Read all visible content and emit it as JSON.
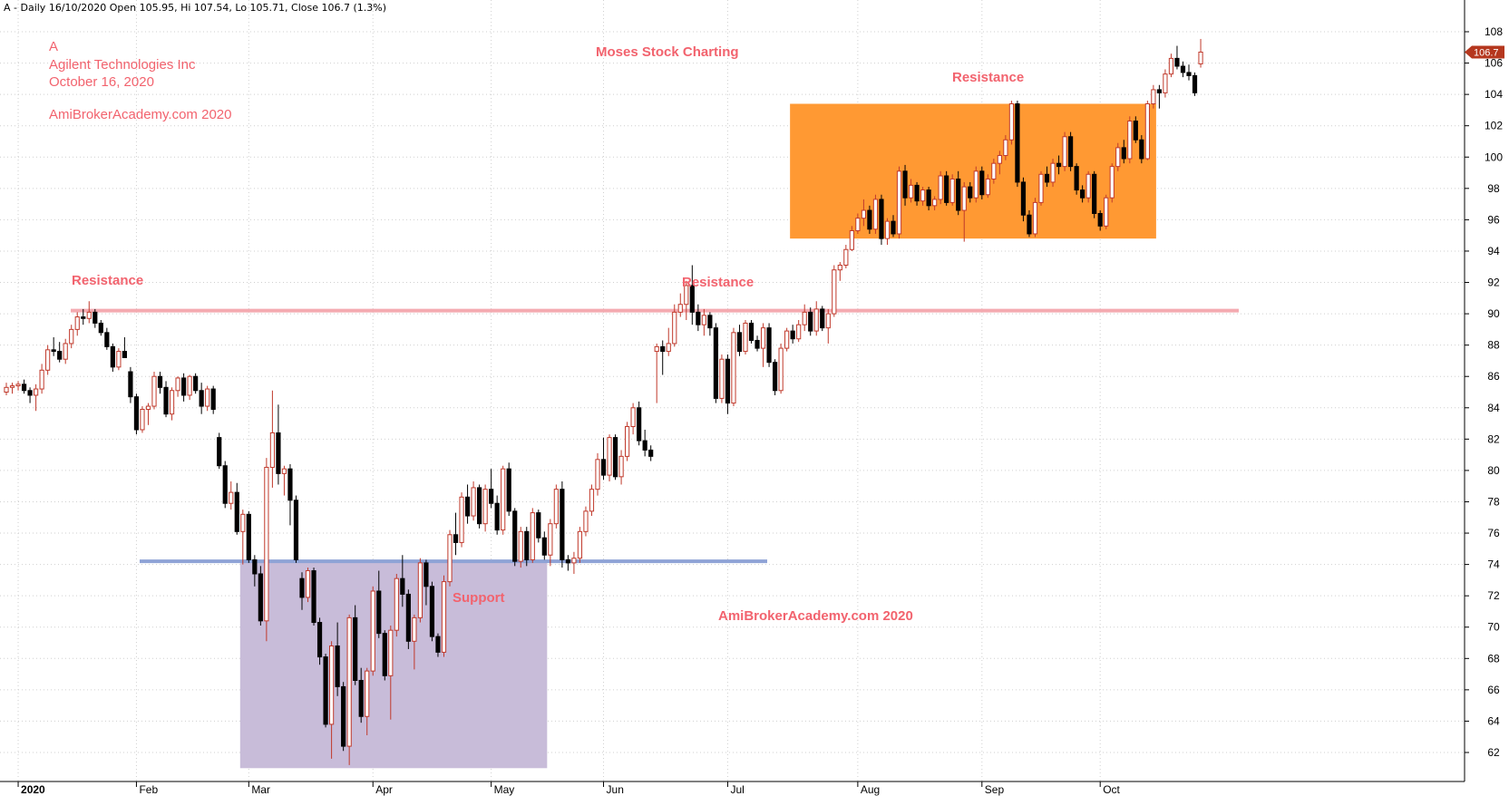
{
  "header": {
    "text": "A - Daily 16/10/2020 Open 105.95, Hi 107.54, Lo 105.71, Close 106.7 (1.3%)"
  },
  "annotations": {
    "ticker": "A",
    "company": "Agilent Technologies Inc",
    "date": "October 16, 2020",
    "site_top": "AmiBrokerAcademy.com  2020",
    "credit": "Moses Stock Charting",
    "resistance_left": "Resistance",
    "resistance_mid": "Resistance",
    "resistance_box": "Resistance",
    "support": "Support",
    "site_bottom": "AmiBrokerAcademy.com  2020"
  },
  "colors": {
    "up_candle": "#c0392b",
    "down_candle": "#000000",
    "resistance_line": "#f4aab0",
    "support_line": "#8fa3d6",
    "support_box": "#c8bcd9",
    "resistance_box": "#ff9933",
    "annotation_text": "#f2636e",
    "last_price_badge": "#b5371e",
    "grid": "#cfcfcf"
  },
  "chart_data": {
    "type": "candlestick",
    "symbol": "A",
    "period": "Daily",
    "ylim": [
      61,
      109
    ],
    "y_ticks": [
      62,
      64,
      66,
      68,
      70,
      72,
      74,
      76,
      78,
      80,
      82,
      84,
      86,
      88,
      90,
      92,
      94,
      96,
      98,
      100,
      102,
      104,
      106,
      108
    ],
    "x_month_labels": [
      {
        "label": "2020",
        "index": 2,
        "bold": true
      },
      {
        "label": "Feb",
        "index": 22
      },
      {
        "label": "Mar",
        "index": 41
      },
      {
        "label": "Apr",
        "index": 62
      },
      {
        "label": "May",
        "index": 82
      },
      {
        "label": "Jun",
        "index": 101
      },
      {
        "label": "Jul",
        "index": 122
      },
      {
        "label": "Aug",
        "index": 144
      },
      {
        "label": "Sep",
        "index": 165
      },
      {
        "label": "Oct",
        "index": 185
      }
    ],
    "last_close_label": "106.7",
    "last_close": 106.7,
    "resistance_level": 90.2,
    "support_level": 74.2,
    "support_zone": {
      "from_index": 40,
      "to_index": 91,
      "low": 61,
      "high": 74.2
    },
    "resistance_zone": {
      "from_index": 133,
      "to_index": 194,
      "low": 94.8,
      "high": 103.4
    },
    "ohlc": [
      [
        85.0,
        85.6,
        84.8,
        85.3
      ],
      [
        85.3,
        85.6,
        84.9,
        85.4
      ],
      [
        85.4,
        85.7,
        85.1,
        85.5
      ],
      [
        85.5,
        85.8,
        84.9,
        85.1
      ],
      [
        85.1,
        85.3,
        84.3,
        84.8
      ],
      [
        84.8,
        85.5,
        83.8,
        85.2
      ],
      [
        85.2,
        86.8,
        84.9,
        86.4
      ],
      [
        86.4,
        88.0,
        86.1,
        87.7
      ],
      [
        87.7,
        88.5,
        87.3,
        87.6
      ],
      [
        87.6,
        88.2,
        86.9,
        87.1
      ],
      [
        87.1,
        88.4,
        86.8,
        88.1
      ],
      [
        88.1,
        89.3,
        87.8,
        89.0
      ],
      [
        89.0,
        90.1,
        88.6,
        89.8
      ],
      [
        89.8,
        90.3,
        89.3,
        89.7
      ],
      [
        89.7,
        90.8,
        89.4,
        90.1
      ],
      [
        90.1,
        90.3,
        89.1,
        89.4
      ],
      [
        89.4,
        89.6,
        88.6,
        88.8
      ],
      [
        88.8,
        89.1,
        87.7,
        87.9
      ],
      [
        87.9,
        88.1,
        86.3,
        86.6
      ],
      [
        86.6,
        87.8,
        86.4,
        87.6
      ],
      [
        87.6,
        88.5,
        87.3,
        87.2
      ],
      [
        86.3,
        86.6,
        84.3,
        84.7
      ],
      [
        84.7,
        84.9,
        82.3,
        82.6
      ],
      [
        82.6,
        84.1,
        82.4,
        83.9
      ],
      [
        83.9,
        84.3,
        82.9,
        84.1
      ],
      [
        84.1,
        86.3,
        83.9,
        86.0
      ],
      [
        86.0,
        86.3,
        84.9,
        85.3
      ],
      [
        85.3,
        85.7,
        83.4,
        83.6
      ],
      [
        83.6,
        85.3,
        83.2,
        85.1
      ],
      [
        85.1,
        86.0,
        84.7,
        85.9
      ],
      [
        85.9,
        86.2,
        84.4,
        84.8
      ],
      [
        84.8,
        86.1,
        84.5,
        86.0
      ],
      [
        86.0,
        86.2,
        84.9,
        85.1
      ],
      [
        85.1,
        85.6,
        83.6,
        84.1
      ],
      [
        84.1,
        85.4,
        83.8,
        85.2
      ],
      [
        85.2,
        85.4,
        83.6,
        83.9
      ],
      [
        82.1,
        82.4,
        80.1,
        80.3
      ],
      [
        80.3,
        80.6,
        77.6,
        77.9
      ],
      [
        77.9,
        79.3,
        77.5,
        78.6
      ],
      [
        78.6,
        79.2,
        75.9,
        76.1
      ],
      [
        76.1,
        77.5,
        74.0,
        77.2
      ],
      [
        77.2,
        77.4,
        74.1,
        74.3
      ],
      [
        74.3,
        74.6,
        72.6,
        73.4
      ],
      [
        73.4,
        73.9,
        70.1,
        70.4
      ],
      [
        70.4,
        80.8,
        69.1,
        80.2
      ],
      [
        80.2,
        85.1,
        78.9,
        82.4
      ],
      [
        82.4,
        84.2,
        79.1,
        79.8
      ],
      [
        79.8,
        80.3,
        78.4,
        80.1
      ],
      [
        80.1,
        80.4,
        76.5,
        78.1
      ],
      [
        78.1,
        78.4,
        74.1,
        74.3
      ],
      [
        73.1,
        73.5,
        71.1,
        71.9
      ],
      [
        71.9,
        73.8,
        71.6,
        73.6
      ],
      [
        73.6,
        73.8,
        70.1,
        70.3
      ],
      [
        70.3,
        70.6,
        67.6,
        68.1
      ],
      [
        68.1,
        68.3,
        63.6,
        63.8
      ],
      [
        63.8,
        69.1,
        61.6,
        68.8
      ],
      [
        68.8,
        70.3,
        65.6,
        66.2
      ],
      [
        66.2,
        66.5,
        62.1,
        62.4
      ],
      [
        62.4,
        70.8,
        61.2,
        70.6
      ],
      [
        70.6,
        71.4,
        66.3,
        66.6
      ],
      [
        66.6,
        67.4,
        63.9,
        64.3
      ],
      [
        64.3,
        67.4,
        63.1,
        67.2
      ],
      [
        67.2,
        72.6,
        66.9,
        72.3
      ],
      [
        72.3,
        73.6,
        69.3,
        69.6
      ],
      [
        69.6,
        69.8,
        66.6,
        66.9
      ],
      [
        66.9,
        70.1,
        64.1,
        69.8
      ],
      [
        69.8,
        73.4,
        69.4,
        73.1
      ],
      [
        73.1,
        74.6,
        71.3,
        72.1
      ],
      [
        72.1,
        72.4,
        68.6,
        69.1
      ],
      [
        69.1,
        70.8,
        67.3,
        70.6
      ],
      [
        70.6,
        74.4,
        70.3,
        74.1
      ],
      [
        74.1,
        74.3,
        71.4,
        72.6
      ],
      [
        72.6,
        72.9,
        69.1,
        69.4
      ],
      [
        69.4,
        69.6,
        68.1,
        68.4
      ],
      [
        68.4,
        73.3,
        68.1,
        72.9
      ],
      [
        72.9,
        76.2,
        72.6,
        75.9
      ],
      [
        75.9,
        77.3,
        74.6,
        75.4
      ],
      [
        75.4,
        78.6,
        75.1,
        78.3
      ],
      [
        78.3,
        79.1,
        76.6,
        77.1
      ],
      [
        77.1,
        79.3,
        76.8,
        78.9
      ],
      [
        78.9,
        79.1,
        76.3,
        76.6
      ],
      [
        76.6,
        79.1,
        76.1,
        78.8
      ],
      [
        78.8,
        80.1,
        77.6,
        77.9
      ],
      [
        77.9,
        78.4,
        75.9,
        76.2
      ],
      [
        76.2,
        80.3,
        75.9,
        80.1
      ],
      [
        80.1,
        80.5,
        77.1,
        77.4
      ],
      [
        77.4,
        77.6,
        73.9,
        74.2
      ],
      [
        74.2,
        76.4,
        73.8,
        76.1
      ],
      [
        76.1,
        76.4,
        73.9,
        74.3
      ],
      [
        74.3,
        77.6,
        74.1,
        77.3
      ],
      [
        77.3,
        77.5,
        75.4,
        75.7
      ],
      [
        75.7,
        76.1,
        74.3,
        74.6
      ],
      [
        74.6,
        76.9,
        73.9,
        76.6
      ],
      [
        76.6,
        79.1,
        76.3,
        78.8
      ],
      [
        78.8,
        79.3,
        73.8,
        74.3
      ],
      [
        74.3,
        74.6,
        73.6,
        74.1
      ],
      [
        74.1,
        74.8,
        73.4,
        74.4
      ],
      [
        74.4,
        76.4,
        74.1,
        76.1
      ],
      [
        76.1,
        77.7,
        75.8,
        77.4
      ],
      [
        77.4,
        79.1,
        77.1,
        78.8
      ],
      [
        78.8,
        81.1,
        78.4,
        80.7
      ],
      [
        80.7,
        82.1,
        79.4,
        79.7
      ],
      [
        79.7,
        82.3,
        79.3,
        82.1
      ],
      [
        82.1,
        82.3,
        79.4,
        79.6
      ],
      [
        79.6,
        81.3,
        79.1,
        80.9
      ],
      [
        80.9,
        83.1,
        80.6,
        82.8
      ],
      [
        82.8,
        84.3,
        82.3,
        84.0
      ],
      [
        84.0,
        84.4,
        81.6,
        81.9
      ],
      [
        81.9,
        82.6,
        80.9,
        81.3
      ],
      [
        81.3,
        81.6,
        80.6,
        80.9
      ],
      [
        87.6,
        88.1,
        84.3,
        87.9
      ],
      [
        87.9,
        88.3,
        86.1,
        87.6
      ],
      [
        87.6,
        89.1,
        87.3,
        88.1
      ],
      [
        88.1,
        90.6,
        87.9,
        90.1
      ],
      [
        90.1,
        91.3,
        89.8,
        90.6
      ],
      [
        90.6,
        92.1,
        89.6,
        91.8
      ],
      [
        91.8,
        93.1,
        89.3,
        90.1
      ],
      [
        90.1,
        90.6,
        88.9,
        89.3
      ],
      [
        89.3,
        90.3,
        88.6,
        89.9
      ],
      [
        89.9,
        90.1,
        88.6,
        89.1
      ],
      [
        89.1,
        89.4,
        84.3,
        84.6
      ],
      [
        84.6,
        87.4,
        84.3,
        87.1
      ],
      [
        87.1,
        87.4,
        83.6,
        84.3
      ],
      [
        84.3,
        89.1,
        84.1,
        88.8
      ],
      [
        88.8,
        89.3,
        87.3,
        87.6
      ],
      [
        87.6,
        89.6,
        87.4,
        89.4
      ],
      [
        89.4,
        89.6,
        88.1,
        88.3
      ],
      [
        88.3,
        88.6,
        87.6,
        87.8
      ],
      [
        87.8,
        89.4,
        86.6,
        89.1
      ],
      [
        89.1,
        89.4,
        86.6,
        86.9
      ],
      [
        86.9,
        87.1,
        84.8,
        85.1
      ],
      [
        85.1,
        88.1,
        84.9,
        87.8
      ],
      [
        87.8,
        89.1,
        87.6,
        88.9
      ],
      [
        88.9,
        89.3,
        88.1,
        88.4
      ],
      [
        88.4,
        89.6,
        88.2,
        89.3
      ],
      [
        89.3,
        90.6,
        88.9,
        90.1
      ],
      [
        90.1,
        90.4,
        88.6,
        88.9
      ],
      [
        88.9,
        90.8,
        88.6,
        90.3
      ],
      [
        90.3,
        90.5,
        88.9,
        89.1
      ],
      [
        89.1,
        90.3,
        88.1,
        90.0
      ],
      [
        90.0,
        93.1,
        89.8,
        92.8
      ],
      [
        92.8,
        93.3,
        92.1,
        93.1
      ],
      [
        93.1,
        94.4,
        92.9,
        94.1
      ],
      [
        94.1,
        95.6,
        94.0,
        95.3
      ],
      [
        95.3,
        96.4,
        95.1,
        96.1
      ],
      [
        96.1,
        97.3,
        95.6,
        96.6
      ],
      [
        96.6,
        96.9,
        95.1,
        95.4
      ],
      [
        95.4,
        97.6,
        95.1,
        97.3
      ],
      [
        97.3,
        97.6,
        94.4,
        94.8
      ],
      [
        94.8,
        96.1,
        94.4,
        95.9
      ],
      [
        95.9,
        96.3,
        94.9,
        95.1
      ],
      [
        95.1,
        99.4,
        94.8,
        99.1
      ],
      [
        99.1,
        99.5,
        96.9,
        97.4
      ],
      [
        97.4,
        98.6,
        97.1,
        98.2
      ],
      [
        98.2,
        98.4,
        96.9,
        97.2
      ],
      [
        97.2,
        98.1,
        96.9,
        97.9
      ],
      [
        97.9,
        98.1,
        96.6,
        96.9
      ],
      [
        96.9,
        97.5,
        96.6,
        97.3
      ],
      [
        97.3,
        99.1,
        97.0,
        98.8
      ],
      [
        98.8,
        99.1,
        96.9,
        97.1
      ],
      [
        97.1,
        98.9,
        96.9,
        98.6
      ],
      [
        98.6,
        99.1,
        96.3,
        96.6
      ],
      [
        96.6,
        98.4,
        94.6,
        98.1
      ],
      [
        98.1,
        98.4,
        97.1,
        97.4
      ],
      [
        97.4,
        99.4,
        97.1,
        99.1
      ],
      [
        99.1,
        99.4,
        97.3,
        97.6
      ],
      [
        97.6,
        98.9,
        97.4,
        98.6
      ],
      [
        98.6,
        99.9,
        98.3,
        99.6
      ],
      [
        99.6,
        100.4,
        98.9,
        100.1
      ],
      [
        100.1,
        101.4,
        99.8,
        101.1
      ],
      [
        101.1,
        103.6,
        100.8,
        103.4
      ],
      [
        103.4,
        103.6,
        98.1,
        98.4
      ],
      [
        98.4,
        98.7,
        95.9,
        96.3
      ],
      [
        96.3,
        96.6,
        94.9,
        95.1
      ],
      [
        95.1,
        97.4,
        94.9,
        97.1
      ],
      [
        97.1,
        99.1,
        96.9,
        98.9
      ],
      [
        98.9,
        99.4,
        98.1,
        98.4
      ],
      [
        98.4,
        99.9,
        98.1,
        99.6
      ],
      [
        99.6,
        100.1,
        98.9,
        99.4
      ],
      [
        99.4,
        101.6,
        99.1,
        101.3
      ],
      [
        101.3,
        101.6,
        99.1,
        99.4
      ],
      [
        99.4,
        99.6,
        97.6,
        97.9
      ],
      [
        97.9,
        98.2,
        97.1,
        97.4
      ],
      [
        97.4,
        99.1,
        97.1,
        98.9
      ],
      [
        98.9,
        99.1,
        96.1,
        96.4
      ],
      [
        96.4,
        96.6,
        95.3,
        95.6
      ],
      [
        95.6,
        97.6,
        95.4,
        97.4
      ],
      [
        97.4,
        99.6,
        97.1,
        99.4
      ],
      [
        99.4,
        100.9,
        99.1,
        100.6
      ],
      [
        100.6,
        101.1,
        99.6,
        99.9
      ],
      [
        99.9,
        102.6,
        99.6,
        102.3
      ],
      [
        102.3,
        102.6,
        100.9,
        101.1
      ],
      [
        101.1,
        101.4,
        99.6,
        99.9
      ],
      [
        99.9,
        103.6,
        99.8,
        103.4
      ],
      [
        103.4,
        104.6,
        103.1,
        104.3
      ],
      [
        104.3,
        104.6,
        103.1,
        104.1
      ],
      [
        104.1,
        105.6,
        103.8,
        105.3
      ],
      [
        105.3,
        106.6,
        105.1,
        106.3
      ],
      [
        106.3,
        107.1,
        105.6,
        105.8
      ],
      [
        105.8,
        106.1,
        105.1,
        105.4
      ],
      [
        105.4,
        105.9,
        104.9,
        105.2
      ],
      [
        105.2,
        105.4,
        103.9,
        104.1
      ],
      [
        105.95,
        107.54,
        105.71,
        106.7
      ]
    ]
  }
}
